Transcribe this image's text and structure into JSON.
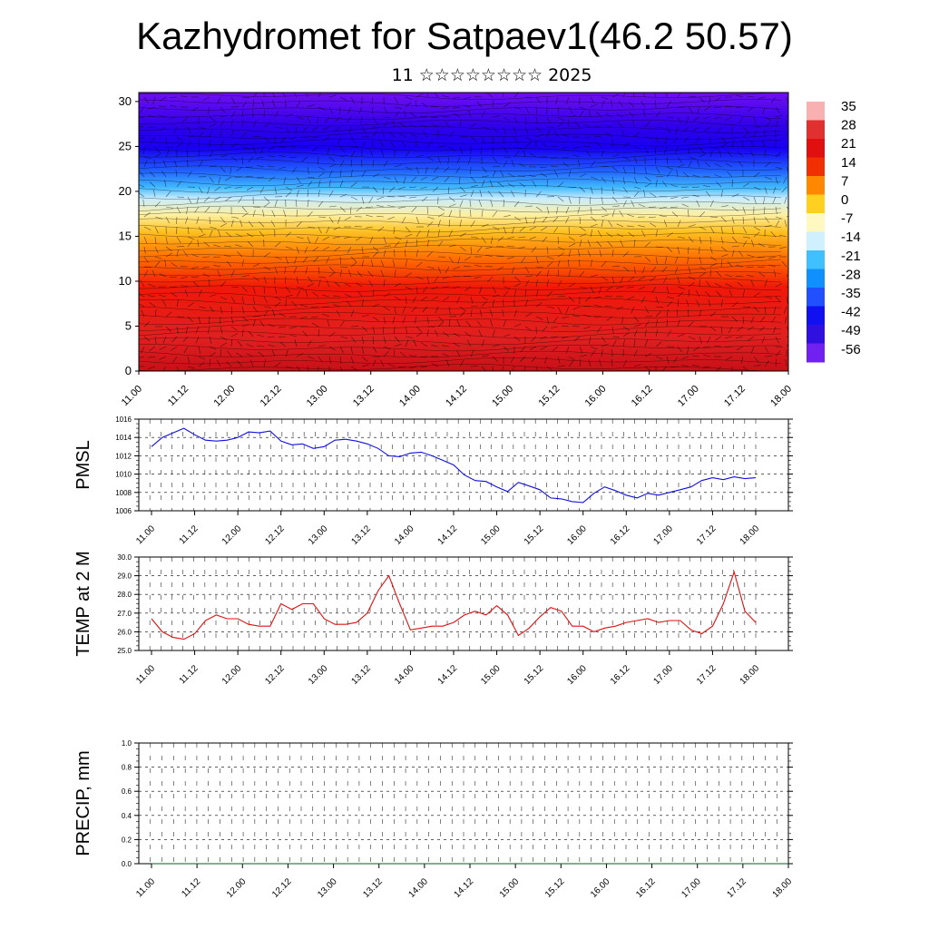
{
  "title": "Kazhydromet for Satpaev1(46.2 50.57)",
  "subtitle": "11 ☆☆☆☆☆☆☆☆ 2025",
  "chart_data": [
    {
      "type": "heatmap",
      "name": "cross-section",
      "x_ticks": [
        "11.00",
        "11.12",
        "12.00",
        "12.12",
        "13.00",
        "13.12",
        "14.00",
        "14.12",
        "15.00",
        "15.12",
        "16.00",
        "16.12",
        "17.00",
        "17.12",
        "18.00"
      ],
      "y_ticks": [
        "0",
        "5",
        "10",
        "15",
        "20",
        "25",
        "30"
      ],
      "ylim": [
        0,
        31
      ],
      "colorbar_labels": [
        "35",
        "28",
        "21",
        "14",
        "7",
        "0",
        "-7",
        "-14",
        "-21",
        "-28",
        "-35",
        "-42",
        "-49",
        "-56"
      ],
      "colors": {
        "hot": "#e01010",
        "warm": "#ffd020",
        "cold": "#00aaff",
        "coldest": "#4000e0"
      },
      "overlay": "wind barbs"
    },
    {
      "type": "line",
      "ylabel": "PMSL",
      "x_ticks": [
        "11.00",
        "11.12",
        "12.00",
        "12.12",
        "13.00",
        "13.12",
        "14.00",
        "14.12",
        "15.00",
        "15.12",
        "16.00",
        "16.12",
        "17.00",
        "17.12",
        "18.00"
      ],
      "y_ticks": [
        "1016",
        "1014",
        "1012",
        "1010",
        "1008",
        "1006"
      ],
      "ylim": [
        1006,
        1016
      ],
      "color": "#1010e0",
      "values": [
        1013.0,
        1014.0,
        1014.5,
        1015.0,
        1014.3,
        1013.7,
        1013.6,
        1013.7,
        1014.0,
        1014.6,
        1014.5,
        1014.7,
        1013.6,
        1013.2,
        1013.3,
        1012.8,
        1013.0,
        1013.7,
        1013.8,
        1013.6,
        1013.3,
        1012.8,
        1012.0,
        1011.9,
        1012.3,
        1012.4,
        1012.0,
        1011.5,
        1011.0,
        1009.9,
        1009.3,
        1009.2,
        1008.6,
        1008.1,
        1009.1,
        1008.7,
        1008.3,
        1007.4,
        1007.3,
        1007.0,
        1006.9,
        1007.9,
        1008.6,
        1008.2,
        1007.7,
        1007.4,
        1007.9,
        1007.7,
        1008.0,
        1008.3,
        1008.6,
        1009.3,
        1009.6,
        1009.4,
        1009.7,
        1009.5,
        1009.6
      ]
    },
    {
      "type": "line",
      "ylabel": "TEMP at 2 M",
      "x_ticks": [
        "11.00",
        "11.12",
        "12.00",
        "12.12",
        "13.00",
        "13.12",
        "14.00",
        "14.12",
        "15.00",
        "15.12",
        "16.00",
        "16.12",
        "17.00",
        "17.12",
        "18.00"
      ],
      "y_ticks": [
        "30.0",
        "29.0",
        "28.0",
        "27.0",
        "26.0",
        "25.0"
      ],
      "ylim": [
        25,
        30
      ],
      "color": "#e01010",
      "values": [
        26.7,
        26.0,
        25.7,
        25.6,
        25.9,
        26.6,
        26.9,
        26.7,
        26.7,
        26.4,
        26.3,
        26.3,
        27.5,
        27.2,
        27.5,
        27.5,
        26.7,
        26.4,
        26.4,
        26.5,
        27.0,
        28.2,
        29.0,
        27.5,
        26.1,
        26.2,
        26.3,
        26.3,
        26.5,
        26.9,
        27.1,
        26.9,
        27.4,
        26.9,
        25.8,
        26.2,
        26.8,
        27.3,
        27.1,
        26.3,
        26.3,
        26.0,
        26.2,
        26.3,
        26.5,
        26.6,
        26.7,
        26.5,
        26.6,
        26.6,
        26.1,
        25.9,
        26.3,
        27.5,
        29.2,
        27.1,
        26.5
      ]
    },
    {
      "type": "line",
      "ylabel": "PRECIP, mm",
      "x_ticks": [
        "11.00",
        "11.12",
        "12.00",
        "12.12",
        "13.00",
        "13.12",
        "14.00",
        "14.12",
        "15.00",
        "15.12",
        "16.00",
        "16.12",
        "17.00",
        "17.12",
        "18.00"
      ],
      "y_ticks": [
        "1.0",
        "0.8",
        "0.6",
        "0.4",
        "0.2",
        "0.0"
      ],
      "ylim": [
        0,
        1
      ],
      "color": "#006020",
      "values": [
        0.0,
        0.0,
        0.0,
        0.0,
        0.0,
        0.0,
        0.0,
        0.0,
        0.0,
        0.0,
        0.0,
        0.0,
        0.0,
        0.0,
        0.0
      ]
    }
  ]
}
